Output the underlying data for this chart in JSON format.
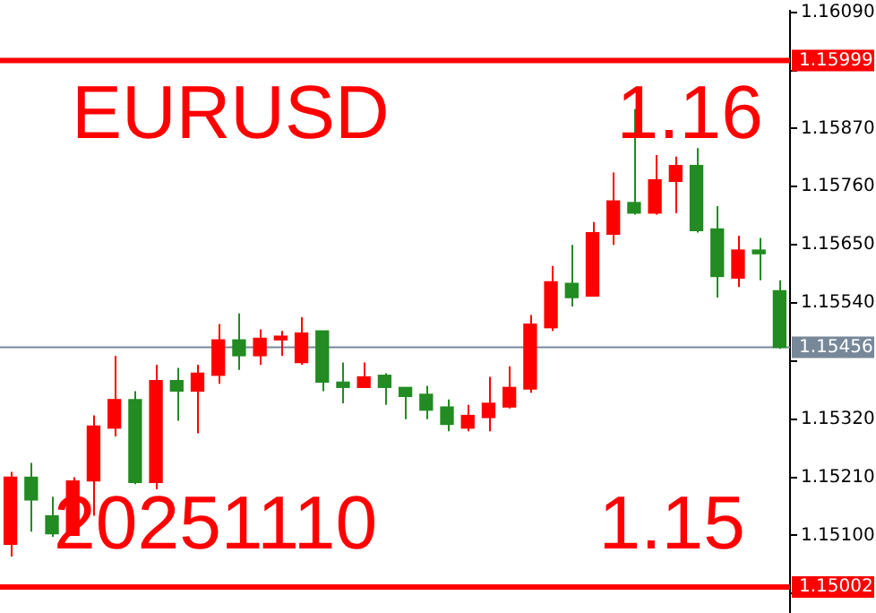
{
  "chart_data": {
    "type": "candlestick",
    "categories": [
      null,
      null,
      null,
      null,
      null,
      null,
      null,
      null,
      null,
      null,
      null,
      null,
      null,
      null,
      null,
      null,
      null,
      null,
      null,
      null,
      null,
      null,
      null,
      null,
      null,
      null,
      null,
      null,
      null,
      null,
      null,
      null,
      null,
      null,
      null,
      null,
      null,
      null
    ],
    "ohlc": [
      [
        1.15083,
        1.1522,
        1.1506,
        1.1521
      ],
      [
        1.1521,
        1.15237,
        1.15107,
        1.15167
      ],
      [
        1.15137,
        1.15173,
        1.15097,
        1.15103
      ],
      [
        1.151,
        1.1521,
        1.151,
        1.15203
      ],
      [
        1.15203,
        1.15327,
        1.15137,
        1.15307
      ],
      [
        1.15303,
        1.1544,
        1.15287,
        1.15357
      ],
      [
        1.15357,
        1.15373,
        1.15197,
        1.152
      ],
      [
        1.152,
        1.15423,
        1.15187,
        1.15393
      ],
      [
        1.15393,
        1.15417,
        1.15317,
        1.15373
      ],
      [
        1.15373,
        1.15423,
        1.15293,
        1.15407
      ],
      [
        1.15403,
        1.155,
        1.15387,
        1.1547
      ],
      [
        1.1547,
        1.1552,
        1.15413,
        1.1544
      ],
      [
        1.1544,
        1.1549,
        1.15423,
        1.15473
      ],
      [
        1.1547,
        1.15487,
        1.1544,
        1.15477
      ],
      [
        1.15427,
        1.15513,
        1.15423,
        1.15483
      ],
      [
        1.15487,
        1.15487,
        1.15373,
        1.1539
      ],
      [
        1.1539,
        1.15427,
        1.1535,
        1.1538
      ],
      [
        1.1538,
        1.15427,
        1.1538,
        1.154
      ],
      [
        1.15403,
        1.15407,
        1.15347,
        1.1538
      ],
      [
        1.1538,
        1.1538,
        1.1532,
        1.15363
      ],
      [
        1.15367,
        1.15383,
        1.1532,
        1.15337
      ],
      [
        1.15343,
        1.15357,
        1.15297,
        1.1531
      ],
      [
        1.15303,
        1.15347,
        1.15297,
        1.15327
      ],
      [
        1.15323,
        1.154,
        1.15297,
        1.1535
      ],
      [
        1.15343,
        1.1542,
        1.1534,
        1.1538
      ],
      [
        1.15377,
        1.15517,
        1.1537,
        1.155
      ],
      [
        1.15493,
        1.1561,
        1.15487,
        1.1558
      ],
      [
        1.15577,
        1.1565,
        1.15533,
        1.1555
      ],
      [
        1.15553,
        1.15693,
        1.15553,
        1.15673
      ],
      [
        1.1567,
        1.15787,
        1.1565,
        1.15733
      ],
      [
        1.1573,
        1.15907,
        1.15707,
        1.1571
      ],
      [
        1.1571,
        1.1582,
        1.15707,
        1.15773
      ],
      [
        1.1577,
        1.15817,
        1.1571,
        1.158
      ],
      [
        1.158,
        1.15833,
        1.15673,
        1.15677
      ],
      [
        1.1568,
        1.15723,
        1.1555,
        1.1559
      ],
      [
        1.15587,
        1.15667,
        1.1557,
        1.1564
      ],
      [
        1.1564,
        1.15663,
        1.15583,
        1.15633
      ],
      [
        1.15563,
        1.15583,
        1.15453,
        1.15456
      ]
    ],
    "colors": [
      "#ff0000",
      "#228b22",
      "#228b22",
      "#ff0000",
      "#ff0000",
      "#ff0000",
      "#228b22",
      "#ff0000",
      "#228b22",
      "#ff0000",
      "#ff0000",
      "#228b22",
      "#ff0000",
      "#ff0000",
      "#ff0000",
      "#228b22",
      "#228b22",
      "#ff0000",
      "#228b22",
      "#228b22",
      "#228b22",
      "#228b22",
      "#ff0000",
      "#ff0000",
      "#ff0000",
      "#ff0000",
      "#ff0000",
      "#228b22",
      "#ff0000",
      "#ff0000",
      "#228b22",
      "#ff0000",
      "#ff0000",
      "#228b22",
      "#228b22",
      "#ff0000",
      "#228b22",
      "#228b22"
    ],
    "ylim": [
      1.14953,
      1.16093
    ],
    "yticks": [
      {
        "value": 1.1609,
        "label": "1.16090"
      },
      {
        "value": 1.1598,
        "label": null
      },
      {
        "value": 1.1587,
        "label": "1.15870"
      },
      {
        "value": 1.1576,
        "label": "1.15760"
      },
      {
        "value": 1.1565,
        "label": "1.15650"
      },
      {
        "value": 1.1554,
        "label": "1.15540"
      },
      {
        "value": 1.1543,
        "label": null
      },
      {
        "value": 1.1532,
        "label": "1.15320"
      },
      {
        "value": 1.1521,
        "label": "1.15210"
      },
      {
        "value": 1.151,
        "label": "1.15100"
      },
      {
        "value": 1.1499,
        "label": null
      }
    ],
    "ref_lines": [
      {
        "axis": "y",
        "value": 1.15999,
        "label": "1.15999",
        "color": "#ff0000"
      },
      {
        "axis": "y",
        "value": 1.15456,
        "label": "1.15456",
        "color": "#778899"
      },
      {
        "axis": "y",
        "value": 1.15002,
        "label": "1.15002",
        "color": "#ff0000"
      }
    ],
    "annotations": [
      "EURUSD",
      "1.16",
      "20251110",
      "1.15"
    ],
    "grid": false,
    "legend": false
  }
}
